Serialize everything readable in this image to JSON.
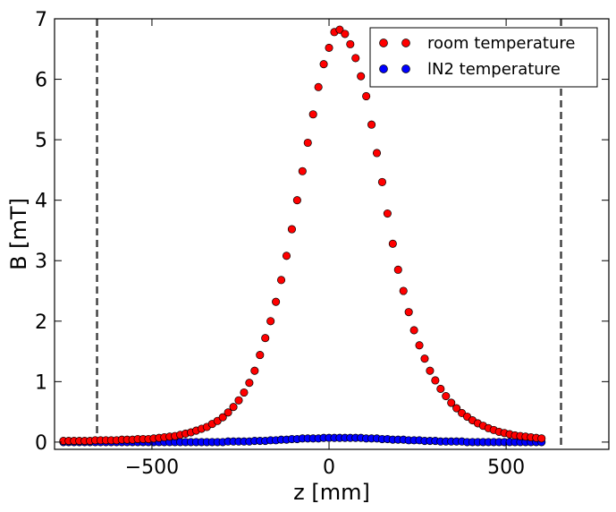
{
  "chart_data": {
    "type": "scatter",
    "title": "",
    "xlabel": "z [mm]",
    "ylabel": "B [mT]",
    "xlim": [
      -775,
      790
    ],
    "ylim": [
      -0.12,
      7.0
    ],
    "xticks": [
      -500,
      0,
      500
    ],
    "xtick_labels": [
      "−500",
      "0",
      "500"
    ],
    "yticks": [
      0,
      1,
      2,
      3,
      4,
      5,
      6,
      7
    ],
    "ytick_labels": [
      "0",
      "1",
      "2",
      "3",
      "4",
      "5",
      "6",
      "7"
    ],
    "grid": false,
    "legend_position": "top-right",
    "reference_lines": [
      {
        "axis": "x",
        "value": -655,
        "style": "dashed",
        "color": "#444444"
      },
      {
        "axis": "x",
        "value": 655,
        "style": "dashed",
        "color": "#444444"
      }
    ],
    "series": [
      {
        "name": "room temperature",
        "color": "#ff0000",
        "x": [
          -750,
          -735,
          -720,
          -705,
          -690,
          -675,
          -660,
          -645,
          -630,
          -615,
          -600,
          -585,
          -570,
          -555,
          -540,
          -525,
          -510,
          -495,
          -480,
          -465,
          -450,
          -435,
          -420,
          -405,
          -390,
          -375,
          -360,
          -345,
          -330,
          -315,
          -300,
          -285,
          -270,
          -255,
          -240,
          -225,
          -210,
          -195,
          -180,
          -165,
          -150,
          -135,
          -120,
          -105,
          -90,
          -75,
          -60,
          -45,
          -30,
          -15,
          0,
          15,
          30,
          45,
          60,
          75,
          90,
          105,
          120,
          135,
          150,
          165,
          180,
          195,
          210,
          225,
          240,
          255,
          270,
          285,
          300,
          315,
          330,
          345,
          360,
          375,
          390,
          405,
          420,
          435,
          450,
          465,
          480,
          495,
          510,
          525,
          540,
          555,
          570,
          585,
          600
        ],
        "y": [
          0.02,
          0.02,
          0.02,
          0.02,
          0.02,
          0.02,
          0.03,
          0.03,
          0.03,
          0.03,
          0.03,
          0.04,
          0.04,
          0.04,
          0.05,
          0.05,
          0.05,
          0.06,
          0.07,
          0.08,
          0.09,
          0.1,
          0.12,
          0.14,
          0.16,
          0.19,
          0.22,
          0.25,
          0.3,
          0.35,
          0.41,
          0.49,
          0.58,
          0.69,
          0.82,
          0.98,
          1.18,
          1.44,
          1.72,
          2.0,
          2.32,
          2.68,
          3.08,
          3.52,
          4.0,
          4.48,
          4.95,
          5.42,
          5.87,
          6.25,
          6.52,
          6.78,
          6.82,
          6.75,
          6.58,
          6.35,
          6.05,
          5.72,
          5.25,
          4.78,
          4.3,
          3.78,
          3.28,
          2.85,
          2.5,
          2.15,
          1.85,
          1.6,
          1.38,
          1.18,
          1.02,
          0.88,
          0.76,
          0.65,
          0.56,
          0.48,
          0.42,
          0.36,
          0.31,
          0.27,
          0.23,
          0.2,
          0.17,
          0.15,
          0.13,
          0.11,
          0.1,
          0.09,
          0.08,
          0.07,
          0.06
        ]
      },
      {
        "name": "lN2 temperature",
        "color": "#0000ff",
        "x": [
          -750,
          -735,
          -720,
          -705,
          -690,
          -675,
          -660,
          -645,
          -630,
          -615,
          -600,
          -585,
          -570,
          -555,
          -540,
          -525,
          -510,
          -495,
          -480,
          -465,
          -450,
          -435,
          -420,
          -405,
          -390,
          -375,
          -360,
          -345,
          -330,
          -315,
          -300,
          -285,
          -270,
          -255,
          -240,
          -225,
          -210,
          -195,
          -180,
          -165,
          -150,
          -135,
          -120,
          -105,
          -90,
          -75,
          -60,
          -45,
          -30,
          -15,
          0,
          15,
          30,
          45,
          60,
          75,
          90,
          105,
          120,
          135,
          150,
          165,
          180,
          195,
          210,
          225,
          240,
          255,
          270,
          285,
          300,
          315,
          330,
          345,
          360,
          375,
          390,
          405,
          420,
          435,
          450,
          465,
          480,
          495,
          510,
          525,
          540,
          555,
          570,
          585,
          600
        ],
        "y": [
          0.0,
          0.0,
          0.0,
          0.0,
          0.0,
          0.0,
          0.0,
          0.0,
          0.0,
          0.0,
          0.0,
          0.0,
          0.0,
          0.0,
          0.0,
          0.0,
          0.0,
          0.0,
          0.0,
          0.0,
          0.0,
          0.0,
          0.0,
          0.0,
          0.0,
          0.0,
          0.0,
          0.0,
          0.0,
          0.0,
          0.0,
          0.01,
          0.01,
          0.01,
          0.01,
          0.01,
          0.02,
          0.02,
          0.02,
          0.03,
          0.03,
          0.04,
          0.04,
          0.05,
          0.05,
          0.06,
          0.06,
          0.06,
          0.06,
          0.07,
          0.07,
          0.07,
          0.07,
          0.07,
          0.07,
          0.07,
          0.07,
          0.06,
          0.06,
          0.06,
          0.05,
          0.05,
          0.04,
          0.04,
          0.04,
          0.03,
          0.03,
          0.03,
          0.02,
          0.02,
          0.02,
          0.01,
          0.01,
          0.01,
          0.01,
          0.01,
          0.0,
          0.0,
          0.0,
          0.0,
          0.0,
          0.0,
          0.0,
          0.0,
          0.0,
          0.0,
          0.0,
          0.0,
          0.0,
          0.0,
          0.0
        ]
      }
    ]
  }
}
